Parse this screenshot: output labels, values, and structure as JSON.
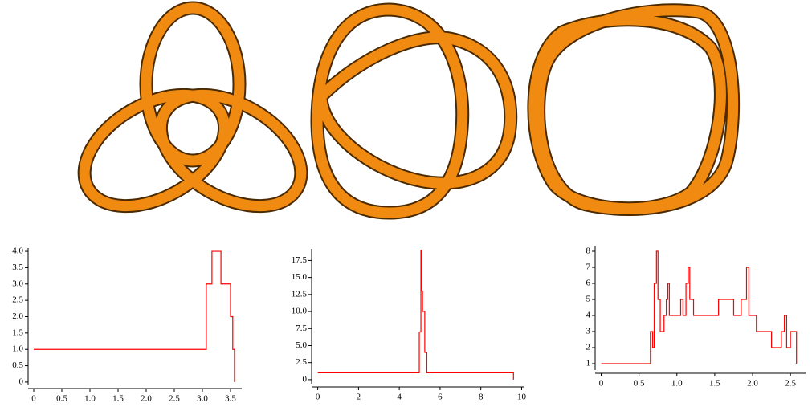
{
  "chart_data": [
    {
      "type": "line",
      "color": "#ff0000",
      "x": [
        0,
        3.07,
        3.07,
        3.17,
        3.17,
        3.33,
        3.33,
        3.5,
        3.5,
        3.54,
        3.54,
        3.57,
        3.57
      ],
      "values": [
        1,
        1,
        3,
        3,
        4,
        4,
        3,
        3,
        2,
        2,
        1,
        1,
        0
      ],
      "xlim": [
        -0.1,
        3.7
      ],
      "ylim": [
        -0.1,
        4.1
      ],
      "xticks": [
        0,
        0.5,
        {
          "value": 1,
          "label": "1.0"
        },
        1.5,
        {
          "value": 2,
          "label": "2.0"
        },
        2.5,
        {
          "value": 3,
          "label": "3.0"
        },
        3.5
      ],
      "yticks": [
        0,
        0.5,
        {
          "value": 1,
          "label": "1.0"
        },
        1.5,
        {
          "value": 2,
          "label": "2.0"
        },
        2.5,
        {
          "value": 3,
          "label": "3.0"
        },
        3.5,
        {
          "value": 4,
          "label": "4.0"
        }
      ]
    },
    {
      "type": "line",
      "color": "#ff0000",
      "x": [
        0,
        4.98,
        4.98,
        5.06,
        5.06,
        5.1,
        5.1,
        5.14,
        5.14,
        5.25,
        5.25,
        5.35,
        5.35,
        9.6,
        9.6
      ],
      "values": [
        1,
        1,
        7,
        7,
        19,
        19,
        13,
        13,
        10,
        10,
        4,
        4,
        1,
        1,
        0
      ],
      "xlim": [
        -0.3,
        10.1
      ],
      "ylim": [
        -0.6,
        19.2
      ],
      "xticks": [
        0,
        2,
        4,
        6,
        8,
        10
      ],
      "yticks": [
        0,
        2.5,
        {
          "value": 5,
          "label": "5.0"
        },
        7.5,
        {
          "value": 10,
          "label": "10.0"
        },
        12.5,
        {
          "value": 15,
          "label": "15.0"
        },
        17.5
      ]
    },
    {
      "type": "line",
      "color": "#ff0000",
      "x": [
        0,
        0.65,
        0.65,
        0.68,
        0.68,
        0.7,
        0.7,
        0.73,
        0.73,
        0.75,
        0.75,
        0.78,
        0.78,
        0.83,
        0.83,
        0.86,
        0.86,
        0.88,
        0.88,
        0.9,
        0.9,
        1.05,
        1.05,
        1.08,
        1.08,
        1.12,
        1.12,
        1.15,
        1.15,
        1.17,
        1.17,
        1.22,
        1.22,
        1.55,
        1.55,
        1.75,
        1.75,
        1.85,
        1.85,
        1.92,
        1.92,
        1.95,
        1.95,
        2.05,
        2.05,
        2.25,
        2.25,
        2.38,
        2.38,
        2.42,
        2.42,
        2.45,
        2.45,
        2.5,
        2.5,
        2.58,
        2.58
      ],
      "values": [
        1,
        1,
        3,
        3,
        2,
        2,
        6,
        6,
        8,
        8,
        5,
        5,
        3,
        3,
        4,
        4,
        5,
        5,
        6,
        6,
        4,
        4,
        5,
        5,
        4,
        4,
        6,
        6,
        7,
        7,
        5,
        5,
        4,
        4,
        5,
        5,
        4,
        4,
        5,
        5,
        7,
        7,
        4,
        4,
        3,
        3,
        2,
        2,
        3,
        3,
        4,
        4,
        2,
        2,
        3,
        3,
        1
      ],
      "xlim": [
        -0.08,
        2.7
      ],
      "ylim": [
        0.6,
        8.3
      ],
      "xticks": [
        0,
        0.5,
        {
          "value": 1,
          "label": "1.0"
        },
        1.5,
        {
          "value": 2,
          "label": "2.0"
        },
        2.5
      ],
      "yticks": [
        1,
        2,
        3,
        4,
        5,
        6,
        7,
        8
      ]
    }
  ]
}
